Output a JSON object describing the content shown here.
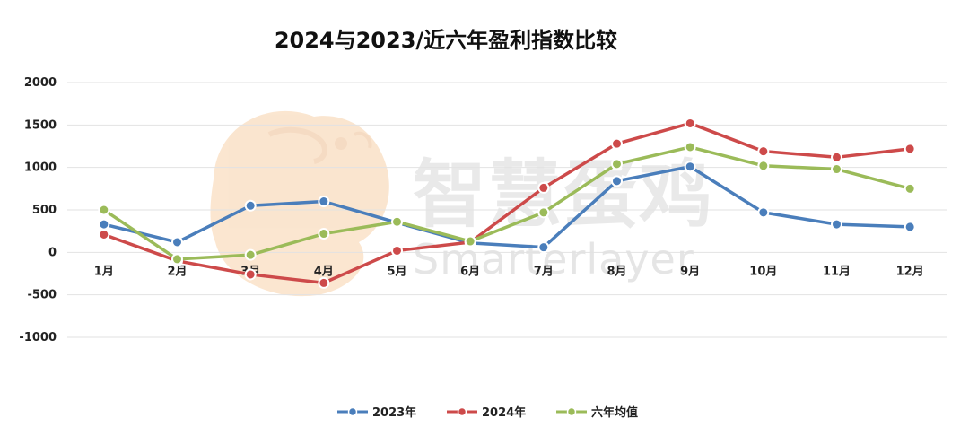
{
  "watermark": {
    "text_cn": "智慧蛋鸡",
    "text_en": "Smarterlayer",
    "icon": "hen-logo-icon"
  },
  "chart_data": {
    "type": "line",
    "title": "2024与2023/近六年盈利指数比较",
    "xlabel": "",
    "ylabel": "",
    "categories": [
      "1月",
      "2月",
      "3月",
      "4月",
      "5月",
      "6月",
      "7月",
      "8月",
      "9月",
      "10月",
      "11月",
      "12月"
    ],
    "y_ticks": [
      "2000",
      "1500",
      "1000",
      "500",
      "0",
      "-500",
      "-1000"
    ],
    "ylim": [
      -1000,
      2000
    ],
    "grid": true,
    "legend_position": "bottom",
    "series": [
      {
        "name": "2023年",
        "color": "#4a7ebb",
        "values": [
          330,
          120,
          550,
          600,
          350,
          110,
          60,
          840,
          1010,
          470,
          330,
          300
        ]
      },
      {
        "name": "2024年",
        "color": "#cd4a4a",
        "values": [
          210,
          -100,
          -260,
          -360,
          20,
          120,
          760,
          1280,
          1520,
          1190,
          1120,
          1220
        ]
      },
      {
        "name": "六年均值",
        "color": "#9bbb59",
        "values": [
          500,
          -80,
          -30,
          220,
          360,
          130,
          470,
          1040,
          1240,
          1020,
          980,
          750
        ]
      }
    ]
  }
}
